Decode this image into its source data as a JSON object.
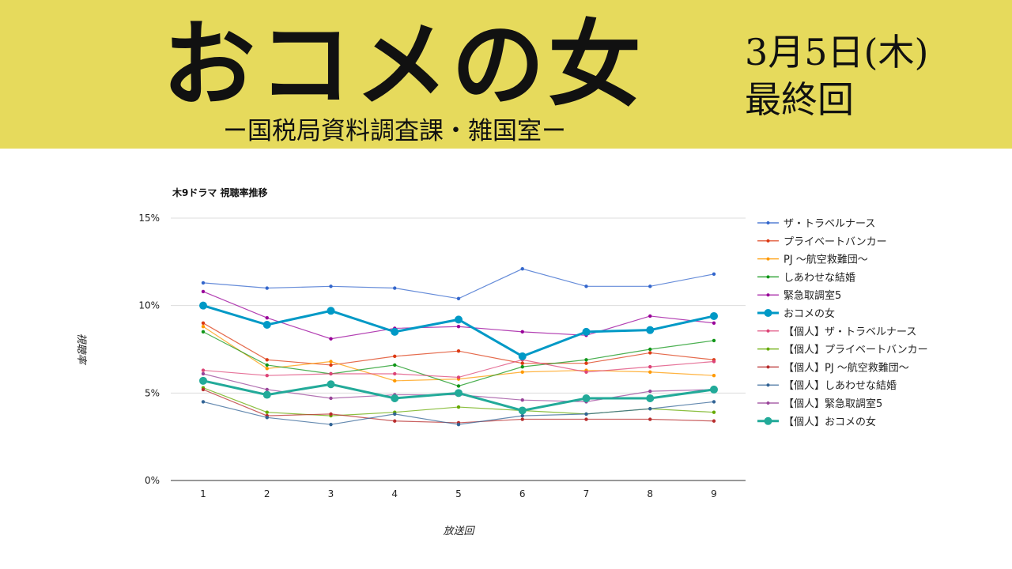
{
  "header": {
    "title": "おコメの女",
    "subtitle": "ー国税局資料調査課・雑国室ー",
    "date": "3月5日(木)",
    "episode_note": "最終回",
    "background_color": "#e6da5c"
  },
  "chart_data": {
    "type": "line",
    "title": "木9ドラマ 視聴率推移",
    "xlabel": "放送回",
    "ylabel": "視聴率",
    "x": [
      1,
      2,
      3,
      4,
      5,
      6,
      7,
      8,
      9
    ],
    "x_tick_labels": [
      "1",
      "2",
      "3",
      "4",
      "5",
      "6",
      "7",
      "8",
      "9"
    ],
    "ylim": [
      0,
      15
    ],
    "y_ticks": [
      0,
      5,
      10,
      15
    ],
    "y_tick_labels": [
      "0%",
      "5%",
      "10%",
      "15%"
    ],
    "grid": true,
    "legend_position": "right",
    "series": [
      {
        "name": "ザ・トラベルナース",
        "color": "#3366cc",
        "emphasis": false,
        "values": [
          11.3,
          11.0,
          11.1,
          11.0,
          10.4,
          12.1,
          11.1,
          11.1,
          11.8
        ]
      },
      {
        "name": "プライベートバンカー",
        "color": "#dc3912",
        "emphasis": false,
        "values": [
          9.0,
          6.9,
          6.6,
          7.1,
          7.4,
          6.7,
          6.7,
          7.3,
          6.9
        ]
      },
      {
        "name": "PJ 〜航空救難団〜",
        "color": "#ff9900",
        "emphasis": false,
        "values": [
          8.8,
          6.4,
          6.8,
          5.7,
          5.8,
          6.2,
          6.3,
          6.2,
          6.0
        ]
      },
      {
        "name": "しあわせな結婚",
        "color": "#109618",
        "emphasis": false,
        "values": [
          8.5,
          6.6,
          6.1,
          6.6,
          5.4,
          6.5,
          6.9,
          7.5,
          8.0
        ]
      },
      {
        "name": "緊急取調室5",
        "color": "#990099",
        "emphasis": false,
        "values": [
          10.8,
          9.3,
          8.1,
          8.7,
          8.8,
          8.5,
          8.3,
          9.4,
          9.0
        ]
      },
      {
        "name": "おコメの女",
        "color": "#0099c6",
        "emphasis": true,
        "values": [
          10.0,
          8.9,
          9.7,
          8.5,
          9.2,
          7.1,
          8.5,
          8.6,
          9.4
        ]
      },
      {
        "name": "【個人】ザ・トラベルナース",
        "color": "#dd4477",
        "emphasis": false,
        "values": [
          6.3,
          6.0,
          6.1,
          6.1,
          5.9,
          6.9,
          6.2,
          6.5,
          6.8
        ]
      },
      {
        "name": "【個人】プライベートバンカー",
        "color": "#66aa00",
        "emphasis": false,
        "values": [
          5.3,
          3.9,
          3.7,
          3.9,
          4.2,
          4.0,
          3.8,
          4.1,
          3.9
        ]
      },
      {
        "name": "【個人】PJ 〜航空救難団〜",
        "color": "#b82e2e",
        "emphasis": false,
        "values": [
          5.2,
          3.7,
          3.8,
          3.4,
          3.3,
          3.5,
          3.5,
          3.5,
          3.4
        ]
      },
      {
        "name": "【個人】しあわせな結婚",
        "color": "#316395",
        "emphasis": false,
        "values": [
          4.5,
          3.6,
          3.2,
          3.8,
          3.2,
          3.7,
          3.8,
          4.1,
          4.5
        ]
      },
      {
        "name": "【個人】緊急取調室5",
        "color": "#994499",
        "emphasis": false,
        "values": [
          6.1,
          5.2,
          4.7,
          4.9,
          4.9,
          4.6,
          4.5,
          5.1,
          5.2
        ]
      },
      {
        "name": "【個人】おコメの女",
        "color": "#22aa99",
        "emphasis": true,
        "values": [
          5.7,
          4.9,
          5.5,
          4.7,
          5.0,
          4.0,
          4.7,
          4.7,
          5.2
        ]
      }
    ]
  }
}
